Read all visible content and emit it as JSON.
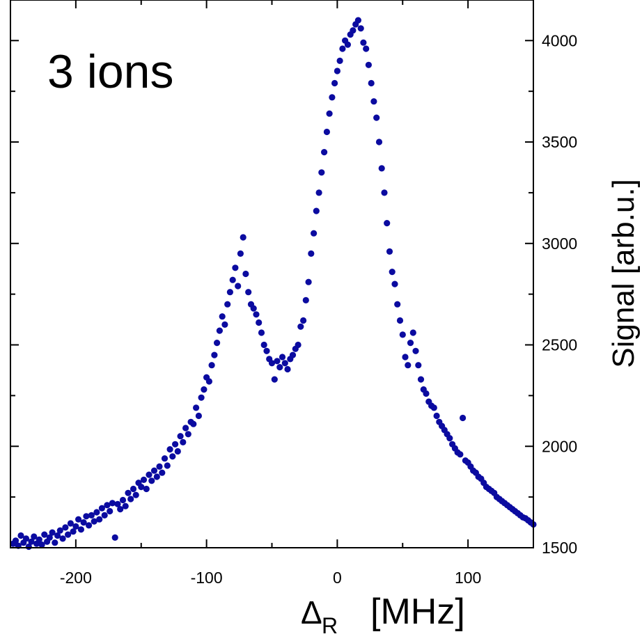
{
  "chart_data": {
    "type": "scatter",
    "title": "",
    "annotation": "3 ions",
    "xlabel": {
      "symbol": "Δ",
      "subscript": "R",
      "unit": "[MHz]"
    },
    "ylabel": "Signal  [arb.u.]",
    "xlim": [
      -250,
      150
    ],
    "ylim": [
      1500,
      4200
    ],
    "xticks": [
      -200,
      -100,
      0,
      100
    ],
    "xtick_labels": [
      "-200",
      "-100",
      "0",
      "100"
    ],
    "yticks": [
      1500,
      2000,
      2500,
      3000,
      3500,
      4000
    ],
    "ytick_labels": [
      "1500",
      "2000",
      "2500",
      "3000",
      "3500",
      "4000"
    ],
    "x_minor_step": 50,
    "y_minor_step": 250,
    "yaxis_side": "right",
    "grid": false,
    "marker_color": "#0b0ba0",
    "series": [
      {
        "points": [
          [
            -248,
            1520
          ],
          [
            -246,
            1535
          ],
          [
            -244,
            1510
          ],
          [
            -242,
            1560
          ],
          [
            -240,
            1525
          ],
          [
            -238,
            1545
          ],
          [
            -236,
            1505
          ],
          [
            -234,
            1530
          ],
          [
            -232,
            1555
          ],
          [
            -230,
            1520
          ],
          [
            -228,
            1540
          ],
          [
            -226,
            1515
          ],
          [
            -224,
            1565
          ],
          [
            -222,
            1530
          ],
          [
            -220,
            1550
          ],
          [
            -218,
            1575
          ],
          [
            -216,
            1525
          ],
          [
            -214,
            1560
          ],
          [
            -212,
            1585
          ],
          [
            -210,
            1545
          ],
          [
            -208,
            1600
          ],
          [
            -206,
            1565
          ],
          [
            -204,
            1620
          ],
          [
            -202,
            1580
          ],
          [
            -200,
            1605
          ],
          [
            -198,
            1640
          ],
          [
            -196,
            1590
          ],
          [
            -194,
            1625
          ],
          [
            -192,
            1655
          ],
          [
            -190,
            1610
          ],
          [
            -188,
            1660
          ],
          [
            -186,
            1630
          ],
          [
            -184,
            1675
          ],
          [
            -182,
            1640
          ],
          [
            -180,
            1695
          ],
          [
            -178,
            1660
          ],
          [
            -176,
            1710
          ],
          [
            -174,
            1680
          ],
          [
            -172,
            1720
          ],
          [
            -170,
            1550
          ],
          [
            -168,
            1715
          ],
          [
            -166,
            1690
          ],
          [
            -164,
            1735
          ],
          [
            -162,
            1705
          ],
          [
            -160,
            1770
          ],
          [
            -158,
            1740
          ],
          [
            -156,
            1790
          ],
          [
            -154,
            1760
          ],
          [
            -152,
            1820
          ],
          [
            -150,
            1800
          ],
          [
            -148,
            1835
          ],
          [
            -146,
            1790
          ],
          [
            -144,
            1860
          ],
          [
            -142,
            1830
          ],
          [
            -140,
            1880
          ],
          [
            -138,
            1850
          ],
          [
            -136,
            1900
          ],
          [
            -134,
            1870
          ],
          [
            -132,
            1940
          ],
          [
            -130,
            1905
          ],
          [
            -128,
            1985
          ],
          [
            -126,
            1950
          ],
          [
            -124,
            2010
          ],
          [
            -122,
            1975
          ],
          [
            -120,
            2050
          ],
          [
            -118,
            2020
          ],
          [
            -116,
            2090
          ],
          [
            -114,
            2060
          ],
          [
            -112,
            2120
          ],
          [
            -110,
            2110
          ],
          [
            -108,
            2190
          ],
          [
            -106,
            2150
          ],
          [
            -104,
            2240
          ],
          [
            -102,
            2280
          ],
          [
            -100,
            2340
          ],
          [
            -98,
            2320
          ],
          [
            -96,
            2400
          ],
          [
            -94,
            2450
          ],
          [
            -92,
            2510
          ],
          [
            -90,
            2570
          ],
          [
            -88,
            2640
          ],
          [
            -86,
            2600
          ],
          [
            -84,
            2700
          ],
          [
            -82,
            2760
          ],
          [
            -80,
            2820
          ],
          [
            -78,
            2880
          ],
          [
            -76,
            2790
          ],
          [
            -74,
            2950
          ],
          [
            -72,
            3030
          ],
          [
            -70,
            2850
          ],
          [
            -68,
            2760
          ],
          [
            -66,
            2700
          ],
          [
            -64,
            2680
          ],
          [
            -62,
            2650
          ],
          [
            -60,
            2610
          ],
          [
            -58,
            2560
          ],
          [
            -56,
            2500
          ],
          [
            -54,
            2470
          ],
          [
            -52,
            2430
          ],
          [
            -50,
            2410
          ],
          [
            -48,
            2330
          ],
          [
            -46,
            2420
          ],
          [
            -44,
            2390
          ],
          [
            -42,
            2440
          ],
          [
            -40,
            2410
          ],
          [
            -38,
            2380
          ],
          [
            -36,
            2430
          ],
          [
            -34,
            2450
          ],
          [
            -32,
            2480
          ],
          [
            -30,
            2500
          ],
          [
            -28,
            2590
          ],
          [
            -26,
            2620
          ],
          [
            -24,
            2720
          ],
          [
            -22,
            2810
          ],
          [
            -20,
            2950
          ],
          [
            -18,
            3050
          ],
          [
            -16,
            3160
          ],
          [
            -14,
            3250
          ],
          [
            -12,
            3350
          ],
          [
            -10,
            3450
          ],
          [
            -8,
            3550
          ],
          [
            -6,
            3640
          ],
          [
            -4,
            3720
          ],
          [
            -2,
            3790
          ],
          [
            0,
            3850
          ],
          [
            2,
            3900
          ],
          [
            4,
            3960
          ],
          [
            6,
            4000
          ],
          [
            8,
            3980
          ],
          [
            10,
            4030
          ],
          [
            12,
            4050
          ],
          [
            14,
            4080
          ],
          [
            16,
            4100
          ],
          [
            18,
            4060
          ],
          [
            20,
            3990
          ],
          [
            22,
            3960
          ],
          [
            24,
            3880
          ],
          [
            26,
            3790
          ],
          [
            28,
            3700
          ],
          [
            30,
            3620
          ],
          [
            32,
            3500
          ],
          [
            34,
            3370
          ],
          [
            36,
            3250
          ],
          [
            38,
            3100
          ],
          [
            40,
            2960
          ],
          [
            42,
            2860
          ],
          [
            44,
            2800
          ],
          [
            46,
            2700
          ],
          [
            48,
            2620
          ],
          [
            50,
            2550
          ],
          [
            52,
            2440
          ],
          [
            54,
            2400
          ],
          [
            56,
            2510
          ],
          [
            58,
            2560
          ],
          [
            60,
            2470
          ],
          [
            62,
            2400
          ],
          [
            64,
            2330
          ],
          [
            66,
            2280
          ],
          [
            68,
            2260
          ],
          [
            70,
            2220
          ],
          [
            72,
            2200
          ],
          [
            74,
            2190
          ],
          [
            76,
            2150
          ],
          [
            78,
            2120
          ],
          [
            80,
            2100
          ],
          [
            82,
            2080
          ],
          [
            84,
            2060
          ],
          [
            86,
            2040
          ],
          [
            88,
            2010
          ],
          [
            90,
            1990
          ],
          [
            92,
            1970
          ],
          [
            94,
            1960
          ],
          [
            96,
            2140
          ],
          [
            98,
            1930
          ],
          [
            100,
            1920
          ],
          [
            102,
            1900
          ],
          [
            104,
            1880
          ],
          [
            106,
            1870
          ],
          [
            108,
            1850
          ],
          [
            110,
            1840
          ],
          [
            112,
            1820
          ],
          [
            114,
            1800
          ],
          [
            116,
            1790
          ],
          [
            118,
            1780
          ],
          [
            120,
            1770
          ],
          [
            122,
            1750
          ],
          [
            124,
            1740
          ],
          [
            126,
            1730
          ],
          [
            128,
            1720
          ],
          [
            130,
            1710
          ],
          [
            132,
            1700
          ],
          [
            134,
            1690
          ],
          [
            136,
            1680
          ],
          [
            138,
            1670
          ],
          [
            140,
            1660
          ],
          [
            142,
            1650
          ],
          [
            144,
            1645
          ],
          [
            146,
            1635
          ],
          [
            148,
            1625
          ],
          [
            150,
            1615
          ]
        ]
      }
    ]
  }
}
